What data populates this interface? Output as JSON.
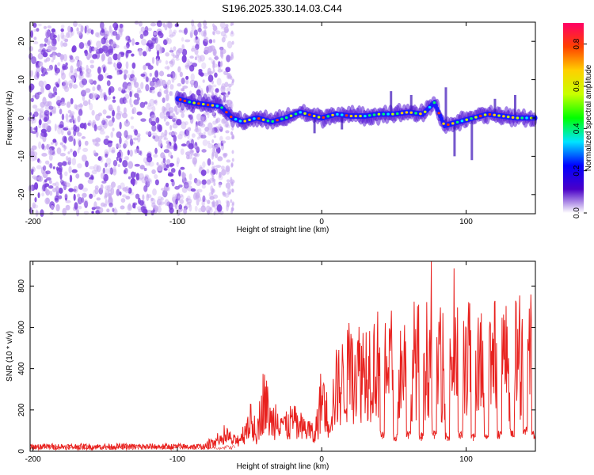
{
  "title": "S196.2025.330.14.03.C44",
  "colors": {
    "line": "#e8211e",
    "axis": "#000000",
    "dot_noise": "#7a3ddc",
    "dot_noise_light": "#c7a9f0"
  },
  "chart_data": [
    {
      "type": "heatmap",
      "xlabel": "Height of straight line (km)",
      "ylabel": "Frequency (Hz)",
      "xlim": [
        -202,
        148
      ],
      "ylim": [
        -25,
        25
      ],
      "xticks": [
        -200,
        -100,
        0,
        100
      ],
      "yticks": [
        -20,
        -10,
        0,
        10,
        20
      ],
      "colorbar": {
        "label": "Normalized spectral amplitude",
        "range": [
          0.0,
          0.9
        ],
        "ticks": [
          0.0,
          0.2,
          0.4,
          0.6,
          0.8
        ],
        "colors": [
          "#ffffff",
          "#4a00c8",
          "#0000ff",
          "#00e5ff",
          "#00ff00",
          "#c8ff00",
          "#ffd000",
          "#ff4000",
          "#ff0066"
        ]
      },
      "ridge": {
        "description_values": "dominant frequency (Hz) vs height (km)",
        "x": [
          -100,
          -90,
          -80,
          -70,
          -62,
          -55,
          -45,
          -35,
          -25,
          -15,
          -5,
          0,
          10,
          20,
          30,
          40,
          50,
          60,
          70,
          78,
          85,
          95,
          105,
          115,
          125,
          135,
          148
        ],
        "y": [
          5,
          4,
          3.5,
          3,
          0,
          -1,
          0,
          -1,
          0,
          1.5,
          0.5,
          0,
          1,
          0.5,
          0.5,
          1,
          1,
          1.5,
          1,
          4,
          -2,
          -1,
          0,
          1,
          0.5,
          0,
          0
        ]
      },
      "noise_region_x": [
        -202,
        -62
      ]
    },
    {
      "type": "line",
      "xlabel": "Height of straight line (km)",
      "ylabel": "SNR (10 * v/v)",
      "xlim": [
        -202,
        148
      ],
      "ylim": [
        0,
        920
      ],
      "xticks": [
        -200,
        -100,
        0,
        100
      ],
      "yticks": [
        0,
        200,
        400,
        600,
        800
      ],
      "series": [
        {
          "name": "SNR",
          "color": "#e8211e",
          "x": [
            -202,
            -180,
            -160,
            -140,
            -120,
            -100,
            -80,
            -75,
            -70,
            -65,
            -60,
            -55,
            -50,
            -45,
            -40,
            -35,
            -30,
            -25,
            -20,
            -15,
            -10,
            -5,
            0,
            5,
            10,
            15,
            20,
            25,
            30,
            35,
            40,
            45,
            50,
            55,
            60,
            65,
            70,
            75,
            78,
            80,
            85,
            90,
            95,
            100,
            105,
            110,
            115,
            120,
            125,
            130,
            135,
            140,
            145,
            148
          ],
          "y": [
            25,
            25,
            25,
            25,
            25,
            25,
            25,
            70,
            60,
            90,
            60,
            100,
            200,
            120,
            350,
            180,
            250,
            150,
            200,
            130,
            150,
            90,
            350,
            200,
            400,
            450,
            500,
            520,
            540,
            560,
            560,
            580,
            560,
            540,
            560,
            600,
            560,
            620,
            900,
            560,
            560,
            600,
            560,
            600,
            580,
            560,
            580,
            600,
            620,
            560,
            600,
            620,
            700,
            560
          ]
        }
      ],
      "dips": {
        "description_values": "periodic low-SNR notches (height km, SNR value)",
        "x": [
          42,
          51,
          60,
          69,
          78,
          87,
          96,
          105,
          114,
          123,
          132,
          141,
          147
        ],
        "y": [
          60,
          50,
          60,
          50,
          60,
          50,
          60,
          50,
          60,
          60,
          70,
          80,
          60
        ]
      }
    }
  ]
}
